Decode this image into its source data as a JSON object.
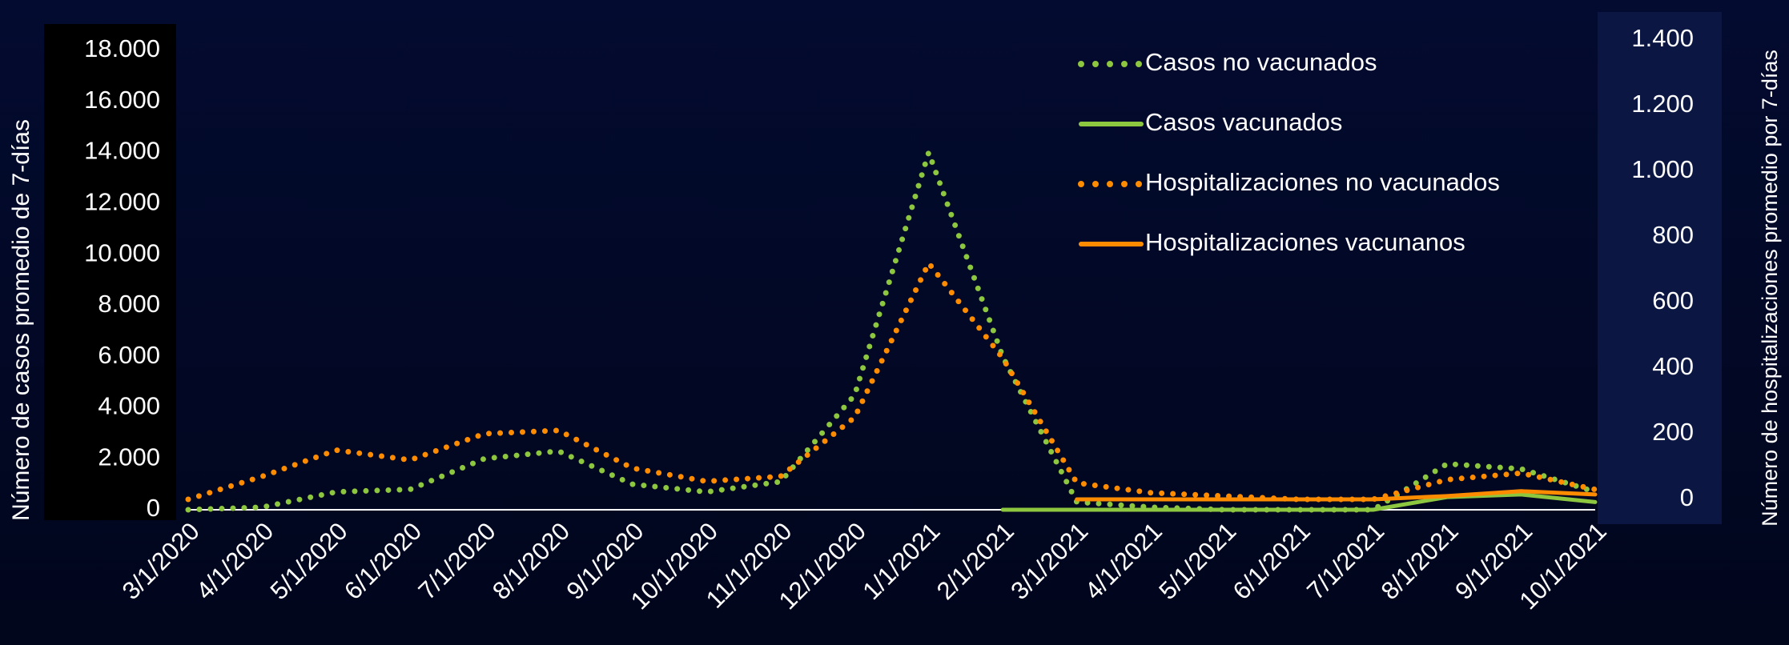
{
  "chart_data": {
    "type": "line",
    "y_label": "Número  de casos promedio de 7-días",
    "y2_label": "Número  de hospitalizaciones promedio por 7-días",
    "categories": [
      "3/1/2020",
      "4/1/2020",
      "5/1/2020",
      "6/1/2020",
      "7/1/2020",
      "8/1/2020",
      "9/1/2020",
      "10/1/2020",
      "11/1/2020",
      "12/1/2020",
      "1/1/2021",
      "2/1/2021",
      "3/1/2021",
      "4/1/2021",
      "5/1/2021",
      "6/1/2021",
      "7/1/2021",
      "8/1/2021",
      "9/1/2021",
      "10/1/2021"
    ],
    "series": [
      {
        "name": "Casos no vacunados",
        "color": "#8dc63f",
        "style": "dotted",
        "axis": "y",
        "values": [
          0,
          100,
          700,
          800,
          2000,
          2300,
          1000,
          700,
          1100,
          4500,
          14000,
          6000,
          300,
          100,
          0,
          0,
          0,
          1800,
          1600,
          700
        ]
      },
      {
        "name": "Casos vacunados",
        "color": "#8dc63f",
        "style": "solid",
        "axis": "y",
        "values": [
          null,
          null,
          null,
          null,
          null,
          null,
          null,
          null,
          null,
          null,
          null,
          0,
          0,
          0,
          0,
          0,
          0,
          500,
          600,
          300
        ]
      },
      {
        "name": "Hospitalizaciones no vacunados",
        "color": "#ff8c00",
        "style": "dotted",
        "axis": "y2",
        "values": [
          0,
          70,
          150,
          120,
          200,
          210,
          95,
          55,
          70,
          250,
          720,
          430,
          50,
          20,
          10,
          0,
          0,
          60,
          80,
          30
        ]
      },
      {
        "name": "Hospitalizaciones vacunanos",
        "color": "#ff8c00",
        "style": "solid",
        "axis": "y2",
        "values": [
          null,
          null,
          null,
          null,
          null,
          null,
          null,
          null,
          null,
          null,
          null,
          null,
          0,
          0,
          0,
          0,
          0,
          10,
          25,
          15
        ]
      }
    ],
    "ylim": [
      0,
      18000
    ],
    "yticks": [
      0,
      {
        "value": 2000,
        "label": "2.000"
      },
      {
        "value": 4000,
        "label": "4.000"
      },
      {
        "value": 6000,
        "label": "6.000"
      },
      {
        "value": 8000,
        "label": "8.000"
      },
      {
        "value": 10000,
        "label": "10.000"
      },
      {
        "value": 12000,
        "label": "12.000"
      },
      {
        "value": 14000,
        "label": "14.000"
      },
      {
        "value": 16000,
        "label": "16.000"
      },
      {
        "value": 18000,
        "label": "18.000"
      }
    ],
    "y2lim": [
      0,
      1400
    ],
    "y2ticks": [
      0,
      200,
      400,
      600,
      800,
      {
        "value": 1000,
        "label": "1.000"
      },
      {
        "value": 1200,
        "label": "1.200"
      },
      {
        "value": 1400,
        "label": "1.400"
      }
    ],
    "legend": "top-right"
  }
}
